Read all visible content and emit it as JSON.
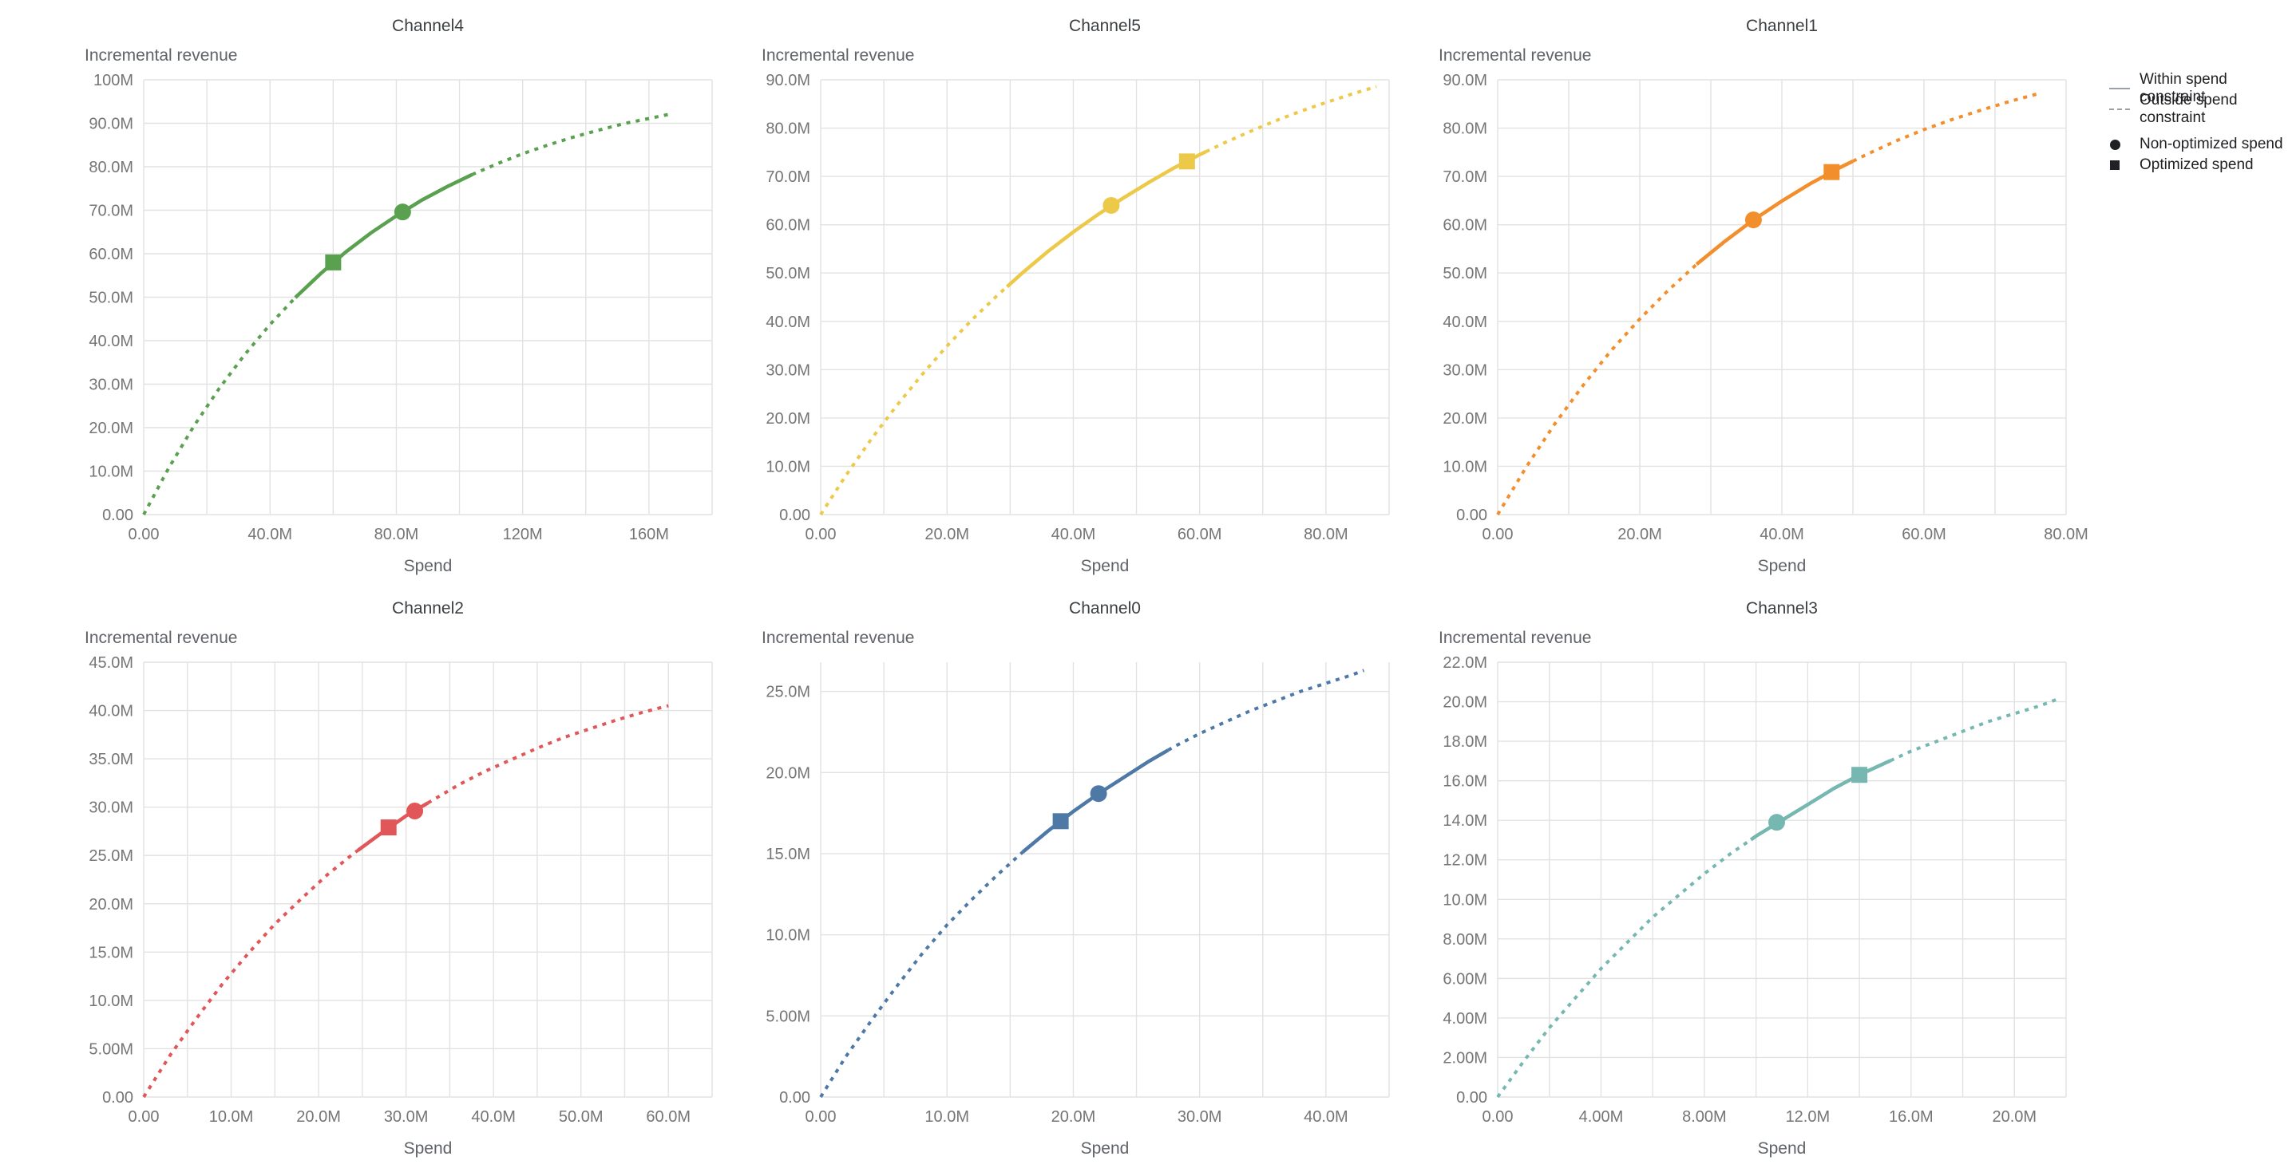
{
  "grid_color": "#e2e2e2",
  "legend": {
    "line_color": "#9aa0a6",
    "marker_color": "#202124",
    "items": [
      {
        "label": "Within spend constraint",
        "swatch": "solid-line"
      },
      {
        "label": "Outside spend constraint",
        "swatch": "dashed-line"
      },
      {
        "label": "Non-optimized spend",
        "swatch": "circle"
      },
      {
        "label": "Optimized spend",
        "swatch": "square"
      }
    ]
  },
  "chart_data": [
    {
      "type": "line",
      "title": "Channel4",
      "xlabel": "Spend",
      "ylabel": "Incremental revenue",
      "color": "#59a14f",
      "units": "millions",
      "xlim": [
        0,
        180
      ],
      "ylim": [
        0,
        100
      ],
      "x_minor_step": 20,
      "xticks": {
        "values": [
          0,
          40,
          80,
          120,
          160
        ],
        "labels": [
          "0.00",
          "40.0M",
          "80.0M",
          "120M",
          "160M"
        ]
      },
      "yticks": {
        "values": [
          0,
          10,
          20,
          30,
          40,
          50,
          60,
          70,
          80,
          90,
          100
        ],
        "labels": [
          "0.00",
          "10.0M",
          "20.0M",
          "30.0M",
          "40.0M",
          "50.0M",
          "60.0M",
          "70.0M",
          "80.0M",
          "90.0M",
          "100M"
        ]
      },
      "solid_range": [
        48,
        104
      ],
      "non_optimized_point": [
        82,
        69.6
      ],
      "optimized_point": [
        60,
        58.0
      ],
      "curve": [
        [
          0,
          0
        ],
        [
          8,
          10.8
        ],
        [
          16,
          20.5
        ],
        [
          24,
          29.1
        ],
        [
          32,
          36.8
        ],
        [
          40,
          43.7
        ],
        [
          48,
          49.9
        ],
        [
          56,
          55.4
        ],
        [
          64,
          60.4
        ],
        [
          72,
          64.8
        ],
        [
          80,
          68.7
        ],
        [
          88,
          72.3
        ],
        [
          96,
          75.4
        ],
        [
          104,
          78.2
        ],
        [
          112,
          80.7
        ],
        [
          120,
          83.0
        ],
        [
          128,
          85.0
        ],
        [
          136,
          86.8
        ],
        [
          144,
          88.4
        ],
        [
          152,
          89.9
        ],
        [
          160,
          91.1
        ],
        [
          166,
          92.0
        ]
      ]
    },
    {
      "type": "line",
      "title": "Channel5",
      "xlabel": "Spend",
      "ylabel": "Incremental revenue",
      "color": "#edc949",
      "units": "millions",
      "xlim": [
        0,
        90
      ],
      "ylim": [
        0,
        90
      ],
      "x_minor_step": 10,
      "xticks": {
        "values": [
          0,
          20,
          40,
          60,
          80
        ],
        "labels": [
          "0.00",
          "20.0M",
          "40.0M",
          "60.0M",
          "80.0M"
        ]
      },
      "yticks": {
        "values": [
          0,
          10,
          20,
          30,
          40,
          50,
          60,
          70,
          80,
          90
        ],
        "labels": [
          "0.00",
          "10.0M",
          "20.0M",
          "30.0M",
          "40.0M",
          "50.0M",
          "60.0M",
          "70.0M",
          "80.0M",
          "90.0M"
        ]
      },
      "solid_range": [
        29.5,
        61
      ],
      "non_optimized_point": [
        46,
        64.0
      ],
      "optimized_point": [
        58,
        73.1
      ],
      "curve": [
        [
          0,
          0
        ],
        [
          4,
          8.1
        ],
        [
          8,
          15.6
        ],
        [
          12,
          22.5
        ],
        [
          16,
          28.9
        ],
        [
          20,
          34.9
        ],
        [
          24,
          40.4
        ],
        [
          28,
          45.4
        ],
        [
          32,
          50.1
        ],
        [
          36,
          54.5
        ],
        [
          40,
          58.5
        ],
        [
          44,
          62.2
        ],
        [
          48,
          65.6
        ],
        [
          52,
          68.8
        ],
        [
          56,
          71.8
        ],
        [
          60,
          74.5
        ],
        [
          64,
          77.0
        ],
        [
          68,
          79.3
        ],
        [
          72,
          81.5
        ],
        [
          76,
          83.5
        ],
        [
          80,
          85.3
        ],
        [
          84,
          87.0
        ],
        [
          88,
          88.6
        ]
      ]
    },
    {
      "type": "line",
      "title": "Channel1",
      "xlabel": "Spend",
      "ylabel": "Incremental revenue",
      "color": "#f28e2b",
      "units": "millions",
      "xlim": [
        0,
        80
      ],
      "ylim": [
        0,
        90
      ],
      "x_minor_step": 10,
      "xticks": {
        "values": [
          0,
          20,
          40,
          60,
          80
        ],
        "labels": [
          "0.00",
          "20.0M",
          "40.0M",
          "60.0M",
          "80.0M"
        ]
      },
      "yticks": {
        "values": [
          0,
          10,
          20,
          30,
          40,
          50,
          60,
          70,
          80,
          90
        ],
        "labels": [
          "0.00",
          "10.0M",
          "20.0M",
          "30.0M",
          "40.0M",
          "50.0M",
          "60.0M",
          "70.0M",
          "80.0M",
          "90.0M"
        ]
      },
      "solid_range": [
        28,
        50
      ],
      "non_optimized_point": [
        36,
        61.0
      ],
      "optimized_point": [
        47,
        70.9
      ],
      "curve": [
        [
          0,
          0
        ],
        [
          4,
          9.8
        ],
        [
          8,
          18.7
        ],
        [
          12,
          26.7
        ],
        [
          16,
          34.0
        ],
        [
          20,
          40.5
        ],
        [
          24,
          46.4
        ],
        [
          28,
          51.8
        ],
        [
          32,
          56.6
        ],
        [
          36,
          61.0
        ],
        [
          40,
          64.9
        ],
        [
          44,
          68.5
        ],
        [
          48,
          71.7
        ],
        [
          52,
          74.6
        ],
        [
          56,
          77.3
        ],
        [
          60,
          79.7
        ],
        [
          64,
          81.8
        ],
        [
          68,
          83.7
        ],
        [
          72,
          85.5
        ],
        [
          76,
          87.1
        ]
      ]
    },
    {
      "type": "line",
      "title": "Channel2",
      "xlabel": "Spend",
      "ylabel": "Incremental revenue",
      "color": "#e15759",
      "units": "millions",
      "xlim": [
        0,
        65
      ],
      "ylim": [
        0,
        45
      ],
      "x_minor_step": 5,
      "xticks": {
        "values": [
          0,
          10,
          20,
          30,
          40,
          50,
          60
        ],
        "labels": [
          "0.00",
          "10.0M",
          "20.0M",
          "30.0M",
          "40.0M",
          "50.0M",
          "60.0M"
        ]
      },
      "yticks": {
        "values": [
          0,
          5,
          10,
          15,
          20,
          25,
          30,
          35,
          40,
          45
        ],
        "labels": [
          "0.00",
          "5.00M",
          "10.0M",
          "15.0M",
          "20.0M",
          "25.0M",
          "30.0M",
          "35.0M",
          "40.0M",
          "45.0M"
        ]
      },
      "solid_range": [
        24.5,
        32.5
      ],
      "non_optimized_point": [
        31,
        29.6
      ],
      "optimized_point": [
        28,
        27.9
      ],
      "curve": [
        [
          0,
          0
        ],
        [
          3,
          4.3
        ],
        [
          6,
          8.1
        ],
        [
          9,
          11.7
        ],
        [
          12,
          14.9
        ],
        [
          15,
          17.9
        ],
        [
          18,
          20.5
        ],
        [
          21,
          23.0
        ],
        [
          24,
          25.2
        ],
        [
          27,
          27.2
        ],
        [
          30,
          29.1
        ],
        [
          33,
          30.7
        ],
        [
          36,
          32.3
        ],
        [
          39,
          33.7
        ],
        [
          42,
          34.9
        ],
        [
          45,
          36.1
        ],
        [
          48,
          37.2
        ],
        [
          51,
          38.1
        ],
        [
          54,
          39.0
        ],
        [
          57,
          39.8
        ],
        [
          60,
          40.5
        ]
      ]
    },
    {
      "type": "line",
      "title": "Channel0",
      "xlabel": "Spend",
      "ylabel": "Incremental revenue",
      "color": "#4e79a7",
      "units": "millions",
      "xlim": [
        0,
        45
      ],
      "ylim": [
        0,
        26.8
      ],
      "x_minor_step": 5,
      "xticks": {
        "values": [
          0,
          10,
          20,
          30,
          40
        ],
        "labels": [
          "0.00",
          "10.0M",
          "20.0M",
          "30.0M",
          "40.0M"
        ]
      },
      "yticks": {
        "values": [
          0,
          5,
          10,
          15,
          20,
          25
        ],
        "labels": [
          "0.00",
          "5.00M",
          "10.0M",
          "15.0M",
          "20.0M",
          "25.0M"
        ]
      },
      "solid_range": [
        16,
        27.5
      ],
      "non_optimized_point": [
        22,
        18.7
      ],
      "optimized_point": [
        19,
        17.0
      ],
      "curve": [
        [
          0,
          0
        ],
        [
          2,
          2.5
        ],
        [
          4,
          4.7
        ],
        [
          6,
          6.8
        ],
        [
          8,
          8.8
        ],
        [
          10,
          10.6
        ],
        [
          12,
          12.2
        ],
        [
          14,
          13.7
        ],
        [
          16,
          15.1
        ],
        [
          18,
          16.4
        ],
        [
          20,
          17.6
        ],
        [
          22,
          18.7
        ],
        [
          24,
          19.7
        ],
        [
          26,
          20.7
        ],
        [
          28,
          21.6
        ],
        [
          30,
          22.4
        ],
        [
          32,
          23.1
        ],
        [
          34,
          23.8
        ],
        [
          36,
          24.4
        ],
        [
          38,
          25.0
        ],
        [
          40,
          25.5
        ],
        [
          42,
          26.0
        ],
        [
          43,
          26.3
        ]
      ]
    },
    {
      "type": "line",
      "title": "Channel3",
      "xlabel": "Spend",
      "ylabel": "Incremental revenue",
      "color": "#76b7b2",
      "units": "millions",
      "xlim": [
        0,
        22
      ],
      "ylim": [
        0,
        22
      ],
      "x_minor_step": 2,
      "xticks": {
        "values": [
          0,
          4,
          8,
          12,
          16,
          20
        ],
        "labels": [
          "0.00",
          "4.00M",
          "8.00M",
          "12.0M",
          "16.0M",
          "20.0M"
        ]
      },
      "yticks": {
        "values": [
          0,
          2,
          4,
          6,
          8,
          10,
          12,
          14,
          16,
          18,
          20,
          22
        ],
        "labels": [
          "0.00",
          "2.00M",
          "4.00M",
          "6.00M",
          "8.00M",
          "10.0M",
          "12.0M",
          "14.0M",
          "16.0M",
          "18.0M",
          "20.0M",
          "22.0M"
        ]
      },
      "solid_range": [
        9.8,
        15.2
      ],
      "non_optimized_point": [
        10.8,
        13.9
      ],
      "optimized_point": [
        14,
        16.3
      ],
      "curve": [
        [
          0,
          0
        ],
        [
          1,
          1.8
        ],
        [
          2,
          3.5
        ],
        [
          3,
          5.0
        ],
        [
          4,
          6.5
        ],
        [
          5,
          7.8
        ],
        [
          6,
          9.1
        ],
        [
          7,
          10.2
        ],
        [
          8,
          11.3
        ],
        [
          9,
          12.3
        ],
        [
          10,
          13.2
        ],
        [
          11,
          14.0
        ],
        [
          12,
          14.8
        ],
        [
          13,
          15.6
        ],
        [
          14,
          16.3
        ],
        [
          15,
          16.9
        ],
        [
          16,
          17.5
        ],
        [
          17,
          18.0
        ],
        [
          18,
          18.5
        ],
        [
          19,
          19.0
        ],
        [
          20,
          19.4
        ],
        [
          21,
          19.8
        ],
        [
          21.6,
          20.1
        ]
      ]
    }
  ]
}
